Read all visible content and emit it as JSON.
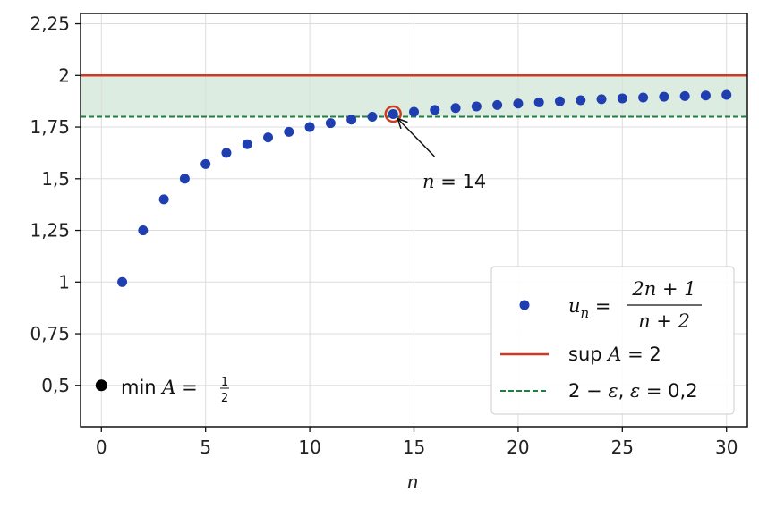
{
  "chart_data": {
    "type": "scatter",
    "xlabel": "n",
    "xlim": [
      -1,
      31
    ],
    "ylim": [
      0.3,
      2.3
    ],
    "grid": true,
    "x_ticks": [
      0,
      5,
      10,
      15,
      20,
      25,
      30
    ],
    "x_tick_labels": [
      "0",
      "5",
      "10",
      "15",
      "20",
      "25",
      "30"
    ],
    "y_ticks": [
      0.5,
      0.75,
      1.0,
      1.25,
      1.5,
      1.75,
      2.0,
      2.25
    ],
    "y_tick_labels": [
      "0,5",
      "0,75",
      "1",
      "1,25",
      "1,5",
      "1,75",
      "2",
      "2,25"
    ],
    "series": [
      {
        "name": "u_n = (2n+1)/(n+2)",
        "color": "#1f3fb0",
        "x": [
          1,
          2,
          3,
          4,
          5,
          6,
          7,
          8,
          9,
          10,
          11,
          12,
          13,
          14,
          15,
          16,
          17,
          18,
          19,
          20,
          21,
          22,
          23,
          24,
          25,
          26,
          27,
          28,
          29,
          30
        ],
        "y": [
          1.0,
          1.25,
          1.4,
          1.5,
          1.571,
          1.625,
          1.667,
          1.7,
          1.727,
          1.75,
          1.769,
          1.786,
          1.8,
          1.813,
          1.824,
          1.833,
          1.842,
          1.85,
          1.857,
          1.864,
          1.87,
          1.875,
          1.88,
          1.885,
          1.889,
          1.893,
          1.897,
          1.9,
          1.903,
          1.906
        ]
      }
    ],
    "min_point": {
      "x": 0,
      "y": 0.5,
      "color": "#000000"
    },
    "sup_line": {
      "y": 2.0,
      "color": "#d03a22"
    },
    "eps_line": {
      "y": 1.8,
      "color": "#1e8040"
    },
    "band_color": "#dcece1",
    "highlight": {
      "x": 14,
      "y": 1.813,
      "color": "#d03a22"
    },
    "annotation": {
      "text_var": "n",
      "text_eq": " = ",
      "text_num": "14",
      "x": 16.5,
      "y": 1.46
    },
    "min_label": {
      "prefix": "min",
      "var": " A",
      "eq": " = ",
      "num": "1",
      "den": "2"
    },
    "legend": {
      "placement": "bottom-right",
      "u_lhs": "u",
      "u_sub": "n",
      "u_eq": " = ",
      "u_num": "2n + 1",
      "u_den": "n + 2",
      "sup_prefix": "sup",
      "sup_var": " A",
      "sup_eq": " = 2",
      "eps_a": "2 − ",
      "eps_b": "ε",
      "eps_c": ", ",
      "eps_d": "ε",
      "eps_e": " = 0,2"
    }
  }
}
